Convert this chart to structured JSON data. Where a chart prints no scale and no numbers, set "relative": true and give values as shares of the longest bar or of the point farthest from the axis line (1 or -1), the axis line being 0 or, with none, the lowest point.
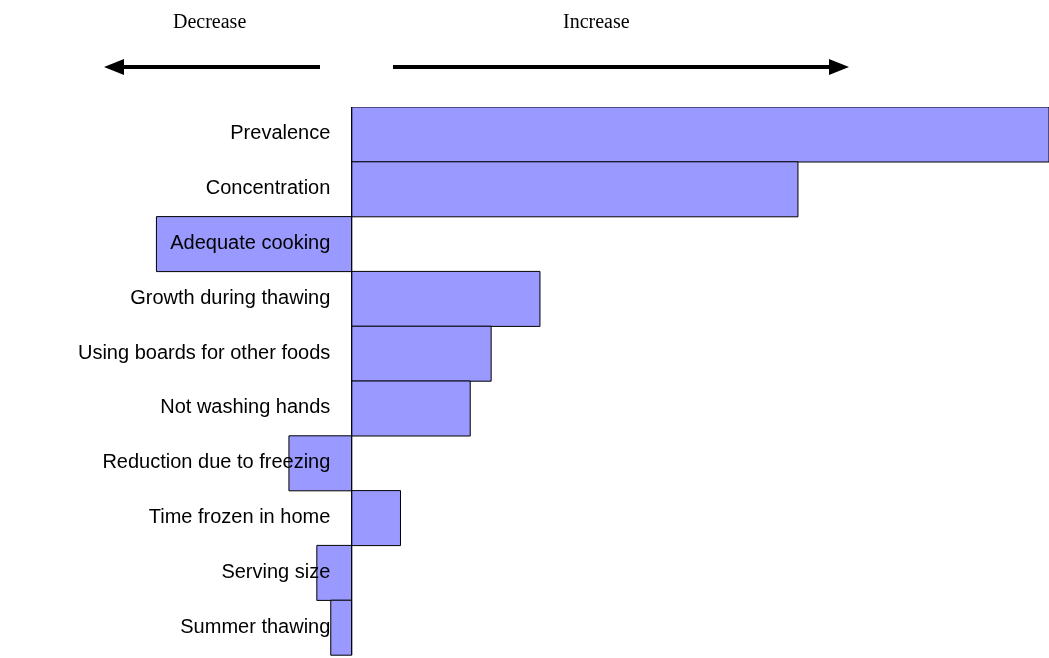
{
  "chart_data": {
    "type": "bar",
    "orientation": "horizontal",
    "relative": true,
    "categories": [
      "Prevalence",
      "Concentration",
      "Adequate cooking",
      "Growth during thawing",
      "Using boards for other foods",
      "Not washing hands",
      "Reduction due to freezing",
      "Time frozen in home",
      "Serving size",
      "Summer thawing"
    ],
    "values": [
      1,
      0.64,
      -0.28,
      0.27,
      0.2,
      0.17,
      -0.09,
      0.07,
      -0.05,
      -0.03
    ],
    "color": "#9999ff",
    "annotations": [
      "Decrease",
      "Increase"
    ],
    "grid": false,
    "legend": false
  }
}
